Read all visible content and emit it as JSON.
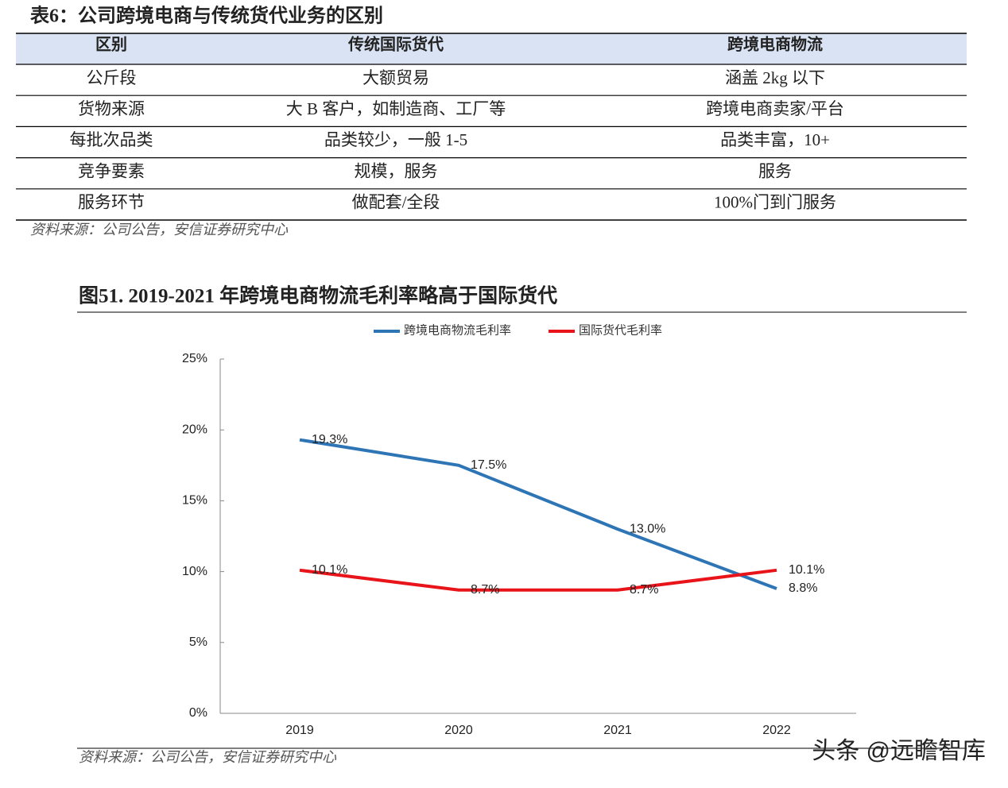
{
  "table": {
    "title": "表6：公司跨境电商与传统货代业务的区别",
    "header": [
      "区别",
      "传统国际货代",
      "跨境电商物流"
    ],
    "rows": [
      [
        "公斤段",
        "大额贸易",
        "涵盖 2kg 以下"
      ],
      [
        "货物来源",
        "大 B 客户，如制造商、工厂等",
        "跨境电商卖家/平台"
      ],
      [
        "每批次品类",
        "品类较少，一般 1-5",
        "品类丰富，10+"
      ],
      [
        "竞争要素",
        "规模，服务",
        "服务"
      ],
      [
        "服务环节",
        "做配套/全段",
        "100%门到门服务"
      ]
    ],
    "source": "资料来源：公司公告，安信证券研究中心"
  },
  "chart_data": {
    "type": "line",
    "title": "图51. 2019-2021 年跨境电商物流毛利率略高于国际货代",
    "categories": [
      "2019",
      "2020",
      "2021",
      "2022"
    ],
    "series": [
      {
        "name": "跨境电商物流毛利率",
        "color": "#2e75b6",
        "values": [
          19.3,
          17.5,
          13.0,
          8.8
        ],
        "value_labels": [
          "19.3%",
          "17.5%",
          "13.0%",
          "8.8%"
        ]
      },
      {
        "name": "国际货代毛利率",
        "color": "#e8141a",
        "values": [
          10.1,
          8.7,
          8.7,
          10.1
        ],
        "value_labels": [
          "10.1%",
          "8.7%",
          "8.7%",
          "10.1%"
        ]
      }
    ],
    "ylim": [
      0,
      25
    ],
    "yticks": [
      {
        "value": 0,
        "label": "0%"
      },
      {
        "value": 5,
        "label": "5%"
      },
      {
        "value": 10,
        "label": "10%"
      },
      {
        "value": 15,
        "label": "15%"
      },
      {
        "value": 20,
        "label": "20%"
      },
      {
        "value": 25,
        "label": "25%"
      }
    ],
    "legend": "top",
    "source": "资料来源：公司公告，安信证券研究中心"
  },
  "watermark": "头条 @远瞻智库"
}
